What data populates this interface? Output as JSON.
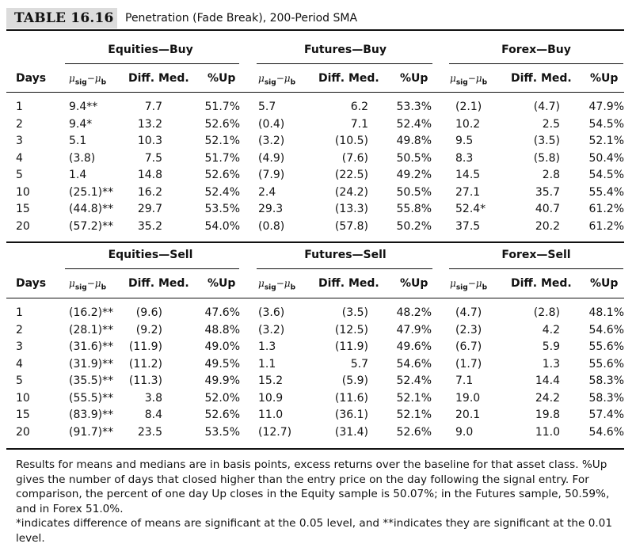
{
  "table": {
    "label": "TABLE 16.16",
    "title": "Penetration (Fade Break), 200-Period SMA"
  },
  "columns": {
    "days": "Days",
    "mu": "μ",
    "mu_sig": "sig",
    "mu_minus": "−μ",
    "mu_b": "b",
    "diff_med": "Diff. Med.",
    "pct_up": "%Up"
  },
  "buy": {
    "groups": [
      "Equities—Buy",
      "Futures—Buy",
      "Forex—Buy"
    ],
    "rows": [
      [
        "1",
        "9.4**",
        "7.7",
        "51.7%",
        "5.7",
        "6.2",
        "53.3%",
        "(2.1)",
        "(4.7)",
        "47.9%"
      ],
      [
        "2",
        "9.4*",
        "13.2",
        "52.6%",
        "(0.4)",
        "7.1",
        "52.4%",
        "10.2",
        "2.5",
        "54.5%"
      ],
      [
        "3",
        "5.1",
        "10.3",
        "52.1%",
        "(3.2)",
        "(10.5)",
        "49.8%",
        "9.5",
        "(3.5)",
        "52.1%"
      ],
      [
        "4",
        "(3.8)",
        "7.5",
        "51.7%",
        "(4.9)",
        "(7.6)",
        "50.5%",
        "8.3",
        "(5.8)",
        "50.4%"
      ],
      [
        "5",
        "1.4",
        "14.8",
        "52.6%",
        "(7.9)",
        "(22.5)",
        "49.2%",
        "14.5",
        "2.8",
        "54.5%"
      ],
      [
        "10",
        "(25.1)**",
        "16.2",
        "52.4%",
        "2.4",
        "(24.2)",
        "50.5%",
        "27.1",
        "35.7",
        "55.4%"
      ],
      [
        "15",
        "(44.8)**",
        "29.7",
        "53.5%",
        "29.3",
        "(13.3)",
        "55.8%",
        "52.4*",
        "40.7",
        "61.2%"
      ],
      [
        "20",
        "(57.2)**",
        "35.2",
        "54.0%",
        "(0.8)",
        "(57.8)",
        "50.2%",
        "37.5",
        "20.2",
        "61.2%"
      ]
    ]
  },
  "sell": {
    "groups": [
      "Equities—Sell",
      "Futures—Sell",
      "Forex—Sell"
    ],
    "rows": [
      [
        "1",
        "(16.2)**",
        "(9.6)",
        "47.6%",
        "(3.6)",
        "(3.5)",
        "48.2%",
        "(4.7)",
        "(2.8)",
        "48.1%"
      ],
      [
        "2",
        "(28.1)**",
        "(9.2)",
        "48.8%",
        "(3.2)",
        "(12.5)",
        "47.9%",
        "(2.3)",
        "4.2",
        "54.6%"
      ],
      [
        "3",
        "(31.6)**",
        "(11.9)",
        "49.0%",
        "1.3",
        "(11.9)",
        "49.6%",
        "(6.7)",
        "5.9",
        "55.6%"
      ],
      [
        "4",
        "(31.9)**",
        "(11.2)",
        "49.5%",
        "1.1",
        "5.7",
        "54.6%",
        "(1.7)",
        "1.3",
        "55.6%"
      ],
      [
        "5",
        "(35.5)**",
        "(11.3)",
        "49.9%",
        "15.2",
        "(5.9)",
        "52.4%",
        "7.1",
        "14.4",
        "58.3%"
      ],
      [
        "10",
        "(55.5)**",
        "3.8",
        "52.0%",
        "10.9",
        "(11.6)",
        "52.1%",
        "19.0",
        "24.2",
        "58.3%"
      ],
      [
        "15",
        "(83.9)**",
        "8.4",
        "52.6%",
        "11.0",
        "(36.1)",
        "52.1%",
        "20.1",
        "19.8",
        "57.4%"
      ],
      [
        "20",
        "(91.7)**",
        "23.5",
        "53.5%",
        "(12.7)",
        "(31.4)",
        "52.6%",
        "9.0",
        "11.0",
        "54.6%"
      ]
    ]
  },
  "notes": [
    "Results for means and medians are in basis points, excess returns over the baseline for that asset class. %Up gives the number of days that closed higher than the entry price on the day following the signal entry. For comparison, the percent of one day Up closes in the Equity sample is 50.07%; in the Futures sample, 50.59%, and in Forex 51.0%.",
    "*indicates difference of means are significant at the 0.05 level, and **indicates they are significant at the 0.01 level."
  ]
}
